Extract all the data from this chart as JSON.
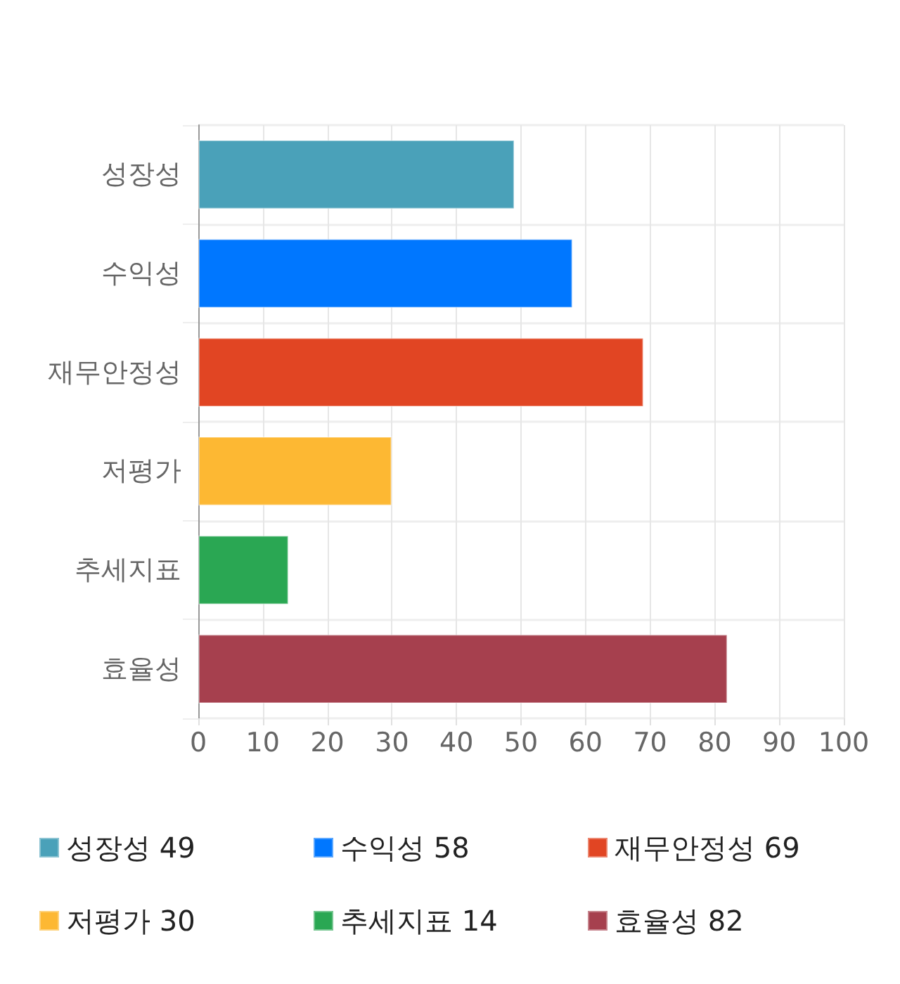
{
  "chart_data": {
    "type": "bar",
    "orientation": "horizontal",
    "stacked": true,
    "categories": [
      "성장성",
      "수익성",
      "재무안정성",
      "저평가",
      "추세지표",
      "효율성"
    ],
    "series": [
      {
        "name": "성장성 49",
        "color": "#4aa1b9",
        "values": [
          49,
          null,
          null,
          null,
          null,
          null
        ]
      },
      {
        "name": "수익성 58",
        "color": "#0077ff",
        "values": [
          null,
          58,
          null,
          null,
          null,
          null
        ]
      },
      {
        "name": "재무안정성 69",
        "color": "#e14523",
        "values": [
          null,
          null,
          69,
          null,
          null,
          null
        ]
      },
      {
        "name": "저평가 30",
        "color": "#fdb833",
        "values": [
          null,
          null,
          null,
          30,
          null,
          null
        ]
      },
      {
        "name": "추세지표 14",
        "color": "#2aa753",
        "values": [
          null,
          null,
          null,
          null,
          14,
          null
        ]
      },
      {
        "name": "효율성 82",
        "color": "#a6404e",
        "values": [
          null,
          null,
          null,
          null,
          null,
          82
        ]
      }
    ],
    "xlim": [
      0,
      100
    ],
    "xticks": [
      0,
      10,
      20,
      30,
      40,
      50,
      60,
      70,
      80,
      90,
      100
    ],
    "grid": true,
    "legend": "bottom"
  }
}
